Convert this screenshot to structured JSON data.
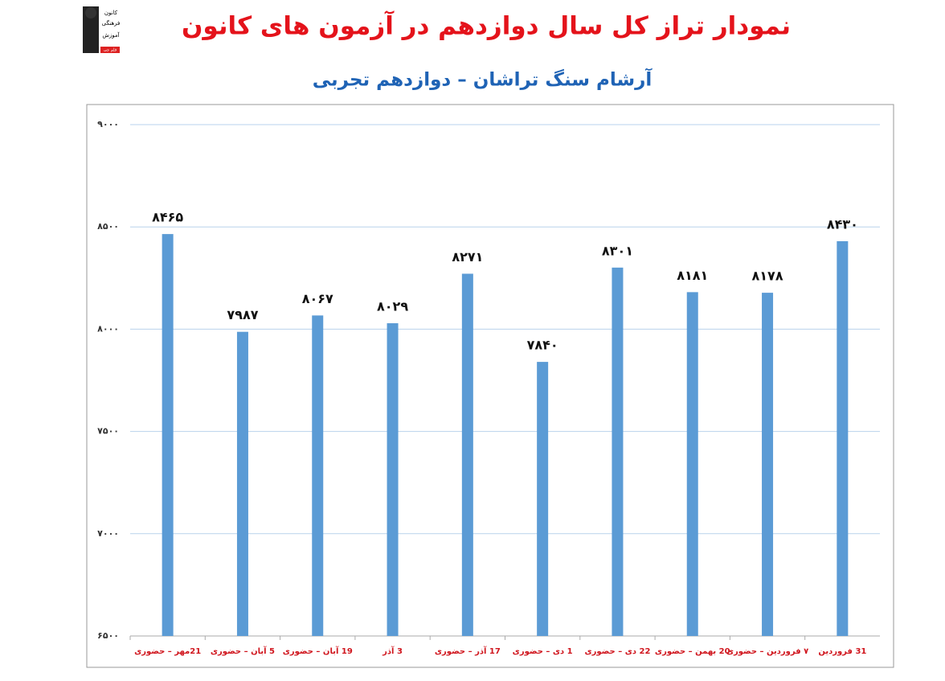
{
  "logo": [
    "کانون",
    "فرهنگی",
    "آموزش",
    "قلم چی"
  ],
  "chart_data": {
    "type": "bar",
    "title": "نمودار تراز کل سال دوازدهم در آزمون های کانون",
    "subtitle": "آرشام سنگ تراشان – دوازدهم تجربی",
    "categories": [
      "21مهر – حضوری",
      "5 آبان – حضوری",
      "19 آبان – حضوری",
      "3 آذر",
      "17 آذر – حضوری",
      "1 دی – حضوری",
      "22 دی – حضوری",
      "20 بهمن – حضوری",
      "۷ فروردین – حضوری",
      "31 فروردین"
    ],
    "values": [
      8465,
      7987,
      8067,
      8029,
      8271,
      7840,
      8301,
      8181,
      8178,
      8430
    ],
    "value_labels": [
      "۸۴۶۵",
      "۷۹۸۷",
      "۸۰۶۷",
      "۸۰۲۹",
      "۸۲۷۱",
      "۷۸۴۰",
      "۸۳۰۱",
      "۸۱۸۱",
      "۸۱۷۸",
      "۸۴۳۰"
    ],
    "color": "#5b9bd5",
    "ylim": [
      6500,
      9000
    ],
    "yticks": [
      {
        "value": 6500,
        "label": "۶۵۰۰"
      },
      {
        "value": 7000,
        "label": "۷۰۰۰"
      },
      {
        "value": 7500,
        "label": "۷۵۰۰"
      },
      {
        "value": 8000,
        "label": "۸۰۰۰"
      },
      {
        "value": 8500,
        "label": "۸۵۰۰"
      },
      {
        "value": 9000,
        "label": "۹۰۰۰"
      }
    ],
    "grid": true
  }
}
